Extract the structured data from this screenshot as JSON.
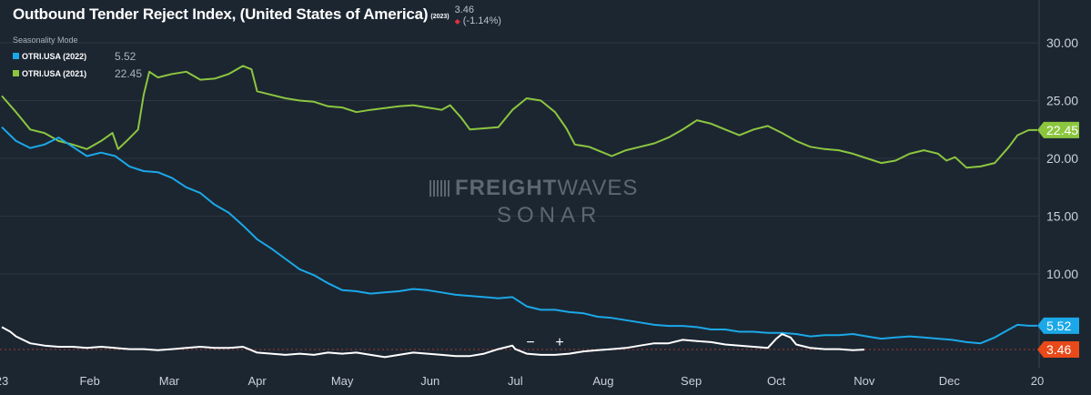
{
  "header": {
    "title": "Outbound Tender Reject Index, (United States of America)",
    "year_tag": "(2023)",
    "last_value": "3.46",
    "change": "(-1.14%)",
    "mode": "Seasonality Mode"
  },
  "legend": [
    {
      "name": "OTRI.USA (2022)",
      "value": "5.52",
      "color": "#1ba8e8"
    },
    {
      "name": "OTRI.USA (2021)",
      "value": "22.45",
      "color": "#8cc63f"
    }
  ],
  "watermark": {
    "brand_bold": "FREIGHT",
    "brand_light": "WAVES",
    "sub": "SONAR"
  },
  "controls": {
    "zoom_out": "−",
    "zoom_in": "+"
  },
  "chart_data": {
    "type": "line",
    "ylim": [
      1.5,
      33
    ],
    "yticks": [
      "10.00",
      "15.00",
      "20.00",
      "25.00",
      "30.00"
    ],
    "x_ticks": [
      "23",
      "Feb",
      "Mar",
      "Apr",
      "May",
      "Jun",
      "Jul",
      "Aug",
      "Sep",
      "Oct",
      "Nov",
      "Dec",
      "20"
    ],
    "x_ticks_day": [
      0,
      31,
      59,
      90,
      120,
      151,
      181,
      212,
      243,
      273,
      304,
      334,
      365
    ],
    "grid": true,
    "series": [
      {
        "name": "OTRI.USA (2021)",
        "color": "#8cc63f",
        "end_label": "22.45",
        "points": [
          [
            0,
            25.4
          ],
          [
            5,
            24
          ],
          [
            10,
            22.5
          ],
          [
            15,
            22.2
          ],
          [
            20,
            21.5
          ],
          [
            25,
            21.2
          ],
          [
            30,
            20.8
          ],
          [
            35,
            21.5
          ],
          [
            39,
            22.2
          ],
          [
            41,
            20.8
          ],
          [
            44,
            21.5
          ],
          [
            48,
            22.5
          ],
          [
            50,
            25.5
          ],
          [
            52,
            27.5
          ],
          [
            55,
            27
          ],
          [
            60,
            27.3
          ],
          [
            65,
            27.5
          ],
          [
            70,
            26.8
          ],
          [
            75,
            26.9
          ],
          [
            80,
            27.3
          ],
          [
            85,
            28
          ],
          [
            88,
            27.7
          ],
          [
            90,
            25.8
          ],
          [
            95,
            25.5
          ],
          [
            100,
            25.2
          ],
          [
            105,
            25
          ],
          [
            110,
            24.9
          ],
          [
            115,
            24.5
          ],
          [
            120,
            24.4
          ],
          [
            125,
            24
          ],
          [
            130,
            24.2
          ],
          [
            140,
            24.5
          ],
          [
            145,
            24.6
          ],
          [
            150,
            24.4
          ],
          [
            155,
            24.2
          ],
          [
            158,
            24.6
          ],
          [
            162,
            23.5
          ],
          [
            165,
            22.5
          ],
          [
            170,
            22.6
          ],
          [
            175,
            22.7
          ],
          [
            180,
            24.2
          ],
          [
            185,
            25.2
          ],
          [
            190,
            25
          ],
          [
            195,
            24
          ],
          [
            199,
            22.6
          ],
          [
            202,
            21.2
          ],
          [
            207,
            21
          ],
          [
            212,
            20.5
          ],
          [
            215,
            20.2
          ],
          [
            220,
            20.7
          ],
          [
            225,
            21
          ],
          [
            230,
            21.3
          ],
          [
            235,
            21.8
          ],
          [
            240,
            22.5
          ],
          [
            245,
            23.3
          ],
          [
            250,
            23
          ],
          [
            255,
            22.5
          ],
          [
            260,
            22
          ],
          [
            265,
            22.5
          ],
          [
            270,
            22.8
          ],
          [
            275,
            22.2
          ],
          [
            280,
            21.5
          ],
          [
            285,
            21
          ],
          [
            290,
            20.8
          ],
          [
            295,
            20.7
          ],
          [
            300,
            20.4
          ],
          [
            305,
            20
          ],
          [
            310,
            19.6
          ],
          [
            315,
            19.8
          ],
          [
            320,
            20.4
          ],
          [
            325,
            20.7
          ],
          [
            330,
            20.4
          ],
          [
            333,
            19.8
          ],
          [
            336,
            20.1
          ],
          [
            340,
            19.2
          ],
          [
            345,
            19.3
          ],
          [
            350,
            19.6
          ],
          [
            355,
            21
          ],
          [
            358,
            22
          ],
          [
            362,
            22.45
          ],
          [
            365,
            22.45
          ]
        ]
      },
      {
        "name": "OTRI.USA (2022)",
        "color": "#1ba8e8",
        "end_label": "5.52",
        "points": [
          [
            0,
            22.7
          ],
          [
            5,
            21.5
          ],
          [
            10,
            20.9
          ],
          [
            15,
            21.2
          ],
          [
            20,
            21.8
          ],
          [
            25,
            21
          ],
          [
            30,
            20.2
          ],
          [
            35,
            20.5
          ],
          [
            40,
            20.2
          ],
          [
            45,
            19.3
          ],
          [
            50,
            18.9
          ],
          [
            55,
            18.8
          ],
          [
            60,
            18.3
          ],
          [
            65,
            17.5
          ],
          [
            70,
            17
          ],
          [
            75,
            16
          ],
          [
            80,
            15.3
          ],
          [
            85,
            14.2
          ],
          [
            90,
            13
          ],
          [
            95,
            12.2
          ],
          [
            100,
            11.3
          ],
          [
            105,
            10.4
          ],
          [
            110,
            9.9
          ],
          [
            115,
            9.2
          ],
          [
            120,
            8.6
          ],
          [
            125,
            8.5
          ],
          [
            130,
            8.3
          ],
          [
            135,
            8.4
          ],
          [
            140,
            8.5
          ],
          [
            145,
            8.7
          ],
          [
            150,
            8.6
          ],
          [
            155,
            8.4
          ],
          [
            160,
            8.2
          ],
          [
            165,
            8.1
          ],
          [
            170,
            8
          ],
          [
            175,
            7.9
          ],
          [
            180,
            8
          ],
          [
            185,
            7.2
          ],
          [
            190,
            6.9
          ],
          [
            195,
            6.9
          ],
          [
            200,
            6.7
          ],
          [
            205,
            6.6
          ],
          [
            210,
            6.3
          ],
          [
            215,
            6.2
          ],
          [
            220,
            6
          ],
          [
            225,
            5.8
          ],
          [
            230,
            5.6
          ],
          [
            235,
            5.5
          ],
          [
            240,
            5.5
          ],
          [
            245,
            5.4
          ],
          [
            250,
            5.2
          ],
          [
            255,
            5.2
          ],
          [
            260,
            5
          ],
          [
            265,
            5
          ],
          [
            270,
            4.9
          ],
          [
            275,
            4.9
          ],
          [
            280,
            4.8
          ],
          [
            285,
            4.6
          ],
          [
            290,
            4.7
          ],
          [
            295,
            4.7
          ],
          [
            300,
            4.8
          ],
          [
            305,
            4.6
          ],
          [
            310,
            4.4
          ],
          [
            315,
            4.5
          ],
          [
            320,
            4.6
          ],
          [
            325,
            4.5
          ],
          [
            330,
            4.4
          ],
          [
            335,
            4.3
          ],
          [
            340,
            4.1
          ],
          [
            345,
            4
          ],
          [
            350,
            4.5
          ],
          [
            355,
            5.2
          ],
          [
            358,
            5.6
          ],
          [
            362,
            5.52
          ],
          [
            365,
            5.52
          ]
        ]
      },
      {
        "name": "",
        "color": "#ffffff",
        "end_label": "3.46",
        "points": [
          [
            0,
            5.4
          ],
          [
            3,
            5
          ],
          [
            5,
            4.6
          ],
          [
            10,
            4
          ],
          [
            15,
            3.8
          ],
          [
            20,
            3.7
          ],
          [
            25,
            3.7
          ],
          [
            30,
            3.6
          ],
          [
            35,
            3.7
          ],
          [
            40,
            3.6
          ],
          [
            45,
            3.5
          ],
          [
            50,
            3.5
          ],
          [
            55,
            3.4
          ],
          [
            60,
            3.5
          ],
          [
            65,
            3.6
          ],
          [
            70,
            3.7
          ],
          [
            75,
            3.6
          ],
          [
            80,
            3.6
          ],
          [
            85,
            3.7
          ],
          [
            88,
            3.4
          ],
          [
            90,
            3.2
          ],
          [
            95,
            3.1
          ],
          [
            100,
            3
          ],
          [
            105,
            3.1
          ],
          [
            110,
            3
          ],
          [
            115,
            3.2
          ],
          [
            120,
            3.1
          ],
          [
            125,
            3.2
          ],
          [
            130,
            3
          ],
          [
            135,
            2.8
          ],
          [
            140,
            3
          ],
          [
            145,
            3.2
          ],
          [
            150,
            3.1
          ],
          [
            155,
            3
          ],
          [
            160,
            2.9
          ],
          [
            165,
            2.9
          ],
          [
            170,
            3.1
          ],
          [
            175,
            3.5
          ],
          [
            180,
            3.8
          ],
          [
            181,
            3.5
          ],
          [
            185,
            3.1
          ],
          [
            190,
            3
          ],
          [
            195,
            3
          ],
          [
            200,
            3.1
          ],
          [
            205,
            3.3
          ],
          [
            210,
            3.4
          ],
          [
            215,
            3.5
          ],
          [
            220,
            3.6
          ],
          [
            225,
            3.8
          ],
          [
            230,
            4
          ],
          [
            235,
            4
          ],
          [
            240,
            4.3
          ],
          [
            245,
            4.2
          ],
          [
            250,
            4.1
          ],
          [
            255,
            3.9
          ],
          [
            260,
            3.8
          ],
          [
            265,
            3.7
          ],
          [
            270,
            3.6
          ],
          [
            273,
            4.4
          ],
          [
            275,
            4.8
          ],
          [
            278,
            4.5
          ],
          [
            280,
            3.9
          ],
          [
            285,
            3.6
          ],
          [
            290,
            3.5
          ],
          [
            295,
            3.5
          ],
          [
            300,
            3.4
          ],
          [
            304,
            3.46
          ]
        ]
      }
    ],
    "end_labels": [
      {
        "value": 22.45,
        "color": "#8cc63f"
      },
      {
        "value": 5.52,
        "color": "#1ba8e8"
      },
      {
        "value": 3.46,
        "color": "#e84a1a"
      }
    ]
  }
}
